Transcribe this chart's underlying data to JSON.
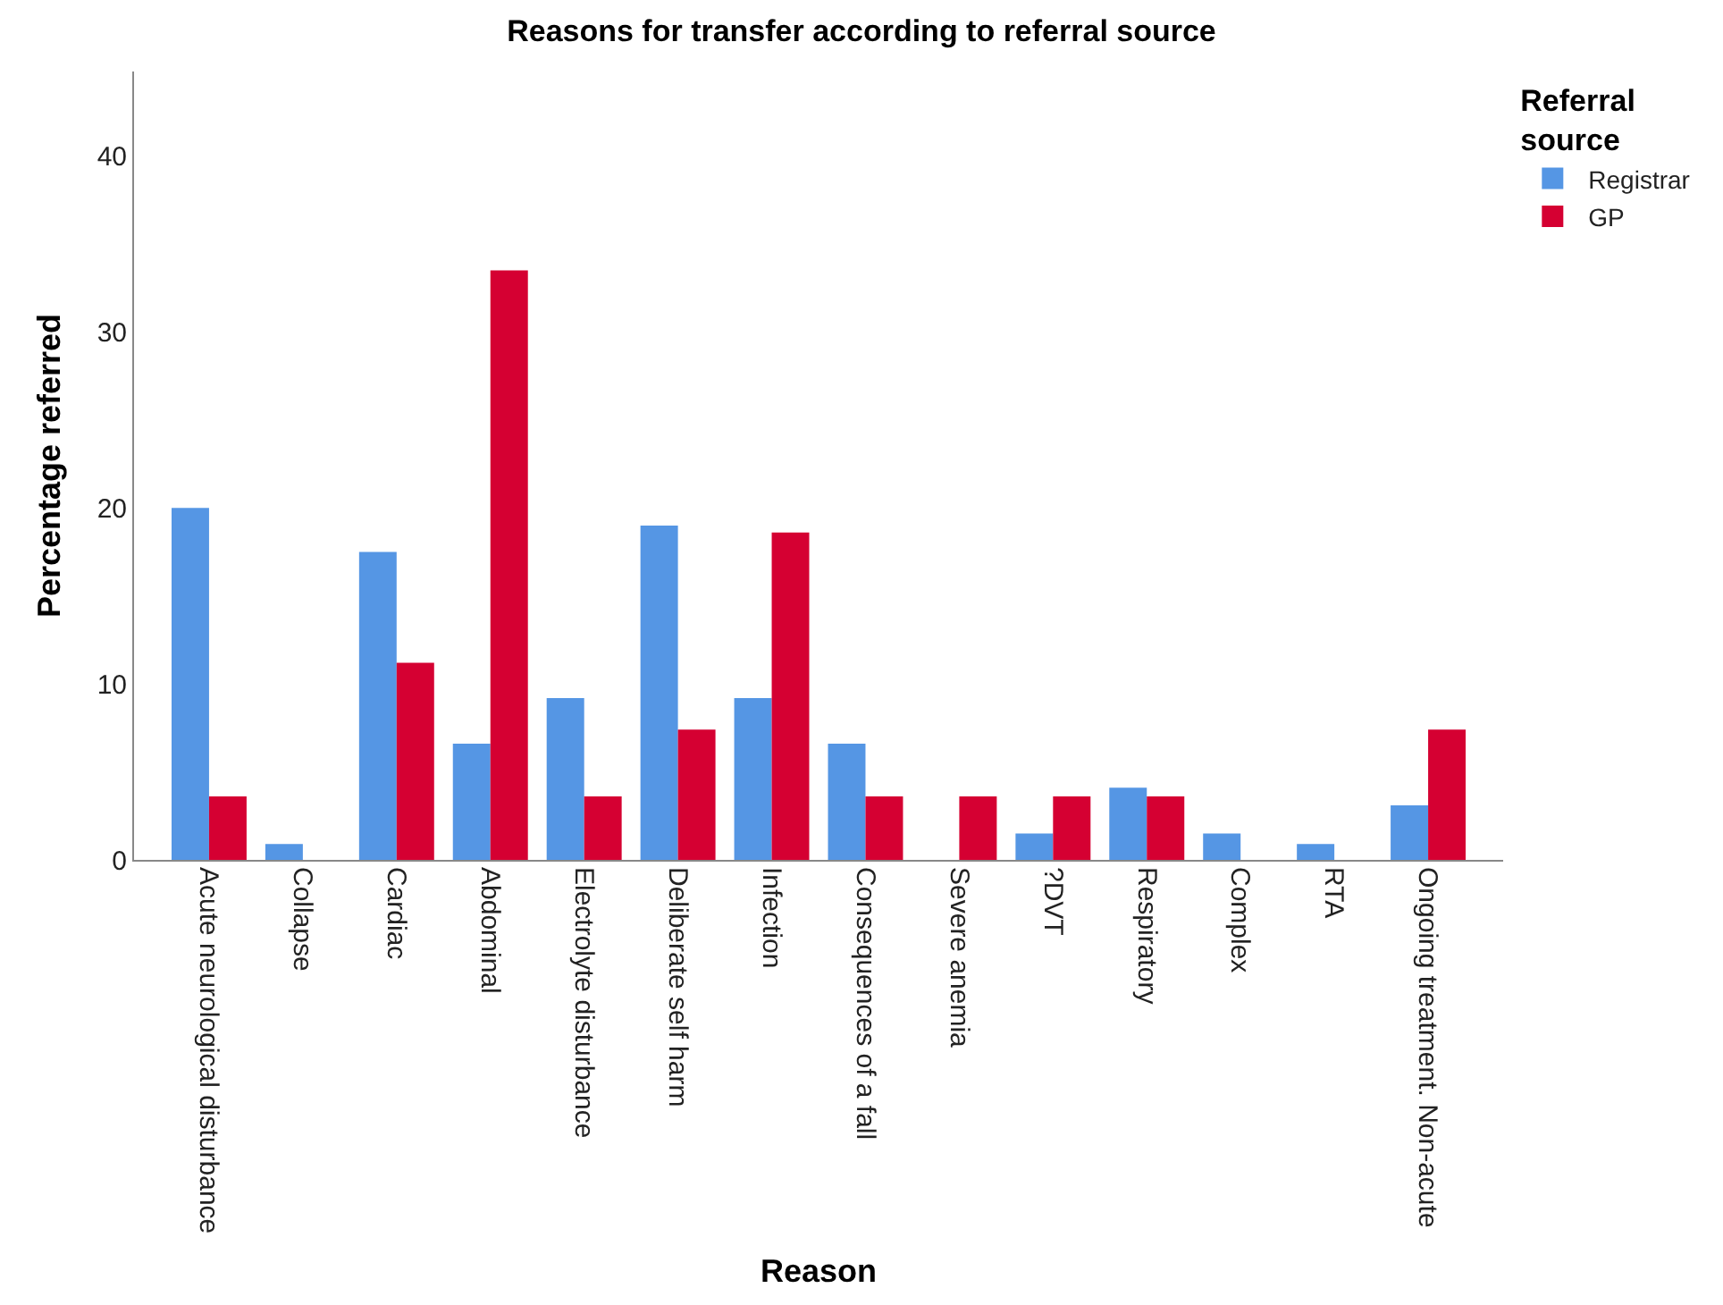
{
  "chart_data": {
    "type": "bar",
    "title": "Reasons for transfer according to referral source",
    "xlabel": "Reason",
    "ylabel": "Percentage referred",
    "legend_title": "Referral source",
    "categories": [
      "Acute neurological disturbance",
      "Collapse",
      "Cardiac",
      "Abdominal",
      "Electrolyte disturbance",
      "Deliberate self harm",
      "Infection",
      "Consequences of a fall",
      "Severe anemia",
      "?DVT",
      "Respiratory",
      "Complex",
      "RTA",
      "Ongoing treatment. Non-acute"
    ],
    "series": [
      {
        "name": "Registrar",
        "color": "#5596e4",
        "values": [
          20.0,
          0.9,
          17.5,
          6.6,
          9.2,
          19.0,
          9.2,
          6.6,
          0,
          1.5,
          4.1,
          1.5,
          0.9,
          3.1
        ]
      },
      {
        "name": "GP",
        "color": "#d50032",
        "values": [
          3.6,
          0,
          11.2,
          33.5,
          3.6,
          7.4,
          18.6,
          3.6,
          3.6,
          3.6,
          3.6,
          0,
          0,
          7.4
        ]
      }
    ],
    "ylim": [
      0,
      44.8
    ],
    "yticks": [
      0,
      10,
      20,
      30,
      40
    ],
    "legend": "top right"
  }
}
